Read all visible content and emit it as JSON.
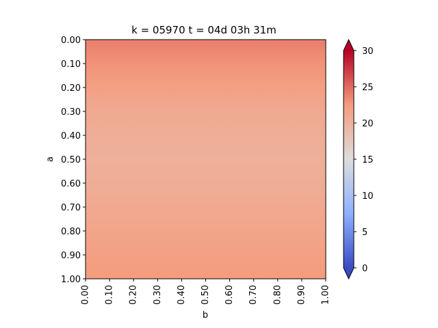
{
  "chart_data": {
    "type": "heatmap",
    "title": "k = 05970 t = 04d 03h 31m",
    "xlabel": "b",
    "ylabel": "a",
    "x_ticks": [
      "0.00",
      "0.10",
      "0.20",
      "0.30",
      "0.40",
      "0.50",
      "0.60",
      "0.70",
      "0.80",
      "0.90",
      "1.00"
    ],
    "y_ticks": [
      "0.00",
      "0.10",
      "0.20",
      "0.30",
      "0.40",
      "0.50",
      "0.60",
      "0.70",
      "0.80",
      "0.90",
      "1.00"
    ],
    "xlim": [
      0,
      1
    ],
    "ylim": [
      1,
      0
    ],
    "y_inverted": true,
    "colormap": "coolwarm",
    "colorbar": {
      "vmin": 0,
      "vmax": 30,
      "ticks": [
        "0",
        "5",
        "10",
        "15",
        "20",
        "25",
        "30"
      ],
      "extend": "both"
    },
    "row_values": [
      {
        "a": 0.0,
        "value": 24.0
      },
      {
        "a": 0.1,
        "value": 23.0
      },
      {
        "a": 0.2,
        "value": 22.0
      },
      {
        "a": 0.3,
        "value": 21.0
      },
      {
        "a": 0.4,
        "value": 20.5
      },
      {
        "a": 0.5,
        "value": 20.2
      },
      {
        "a": 0.6,
        "value": 20.5
      },
      {
        "a": 0.7,
        "value": 21.0
      },
      {
        "a": 0.8,
        "value": 21.5
      },
      {
        "a": 0.9,
        "value": 22.0
      },
      {
        "a": 1.0,
        "value": 22.5
      }
    ],
    "grid": false
  }
}
